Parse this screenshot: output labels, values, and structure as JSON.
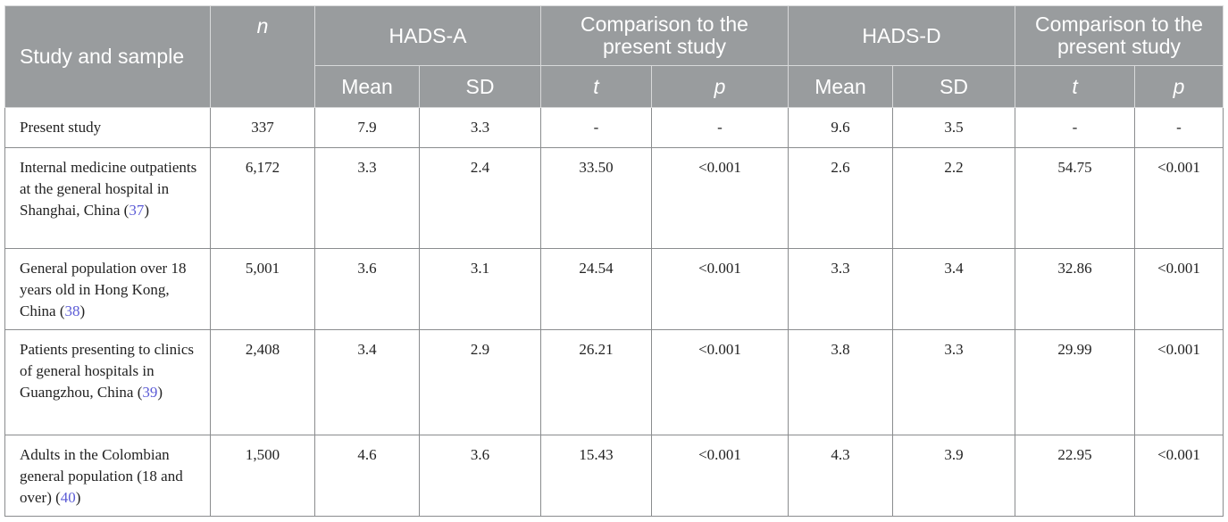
{
  "headers": {
    "study": "Study and sample",
    "n": "n",
    "hads_a": "HADS-A",
    "comp_a": "Comparison to the present study",
    "hads_d": "HADS-D",
    "comp_d": "Comparison to the present study",
    "mean_a": "Mean",
    "sd_a": "SD",
    "t_a": "t",
    "p_a": "p",
    "mean_d": "Mean",
    "sd_d": "SD",
    "t_d": "t",
    "p_d": "p"
  },
  "rows": [
    {
      "study": "Present study",
      "ref": "",
      "n": "337",
      "a_mean": "7.9",
      "a_sd": "3.3",
      "a_t": "-",
      "a_p": "-",
      "d_mean": "9.6",
      "d_sd": "3.5",
      "d_t": "-",
      "d_p": "-"
    },
    {
      "study": "Internal medicine outpatients at the general hospital in Shanghai, China",
      "ref": "37",
      "n": "6,172",
      "a_mean": "3.3",
      "a_sd": "2.4",
      "a_t": "33.50",
      "a_p": "<0.001",
      "d_mean": "2.6",
      "d_sd": "2.2",
      "d_t": "54.75",
      "d_p": "<0.001"
    },
    {
      "study": "General population over 18 years old in Hong Kong, China",
      "ref": "38",
      "n": "5,001",
      "a_mean": "3.6",
      "a_sd": "3.1",
      "a_t": "24.54",
      "a_p": "<0.001",
      "d_mean": "3.3",
      "d_sd": "3.4",
      "d_t": "32.86",
      "d_p": "<0.001"
    },
    {
      "study": "Patients presenting to clinics of general hospitals in Guangzhou, China",
      "ref": "39",
      "n": "2,408",
      "a_mean": "3.4",
      "a_sd": "2.9",
      "a_t": "26.21",
      "a_p": "<0.001",
      "d_mean": "3.8",
      "d_sd": "3.3",
      "d_t": "29.99",
      "d_p": "<0.001"
    },
    {
      "study": "Adults in the Colombian general population (18 and over)",
      "ref": "40",
      "n": "1,500",
      "a_mean": "4.6",
      "a_sd": "3.6",
      "a_t": "15.43",
      "a_p": "<0.001",
      "d_mean": "4.3",
      "d_sd": "3.9",
      "d_t": "22.95",
      "d_p": "<0.001"
    }
  ]
}
